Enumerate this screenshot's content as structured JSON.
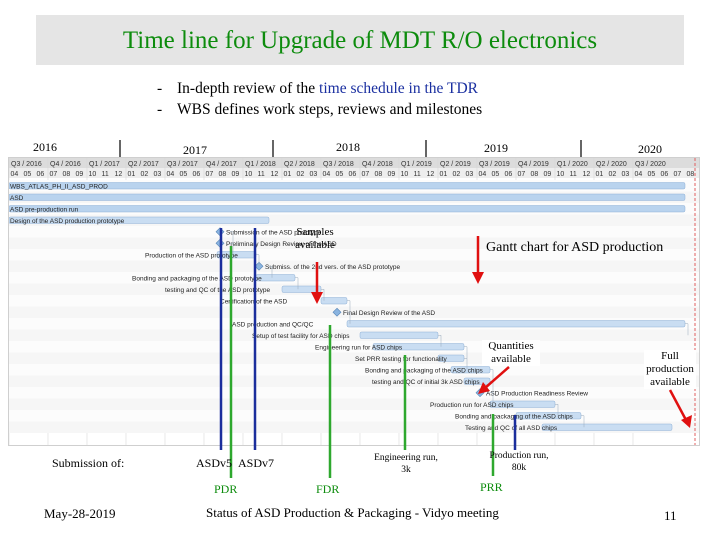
{
  "title": "Time line for Upgrade of MDT R/O electronics",
  "bullets": [
    {
      "dash": "-",
      "pre": "In-depth review of the ",
      "highlight": "time schedule in the TDR",
      "post": ""
    },
    {
      "dash": "-",
      "pre": "WBS defines work steps, reviews and milestones",
      "highlight": "",
      "post": ""
    }
  ],
  "years": [
    "2016",
    "2017",
    "2018",
    "2019",
    "2020"
  ],
  "gantt": {
    "quarters": [
      "Q3 / 2016",
      "Q4 / 2016",
      "Q1 / 2017",
      "Q2 / 2017",
      "Q3 / 2017",
      "Q4 / 2017",
      "Q1 / 2018",
      "Q2 / 2018",
      "Q3 / 2018",
      "Q4 / 2018",
      "Q1 / 2019",
      "Q2 / 2019",
      "Q3 / 2019",
      "Q4 / 2019",
      "Q1 / 2020",
      "Q2 / 2020",
      "Q3 / 2020"
    ],
    "months": [
      "04",
      "05",
      "06",
      "07",
      "08",
      "09",
      "10",
      "11",
      "12",
      "01",
      "02",
      "03",
      "04",
      "05",
      "06",
      "07",
      "08",
      "09",
      "10",
      "11",
      "12",
      "01",
      "02",
      "03",
      "04",
      "05",
      "06",
      "07",
      "08",
      "09",
      "10",
      "11",
      "12",
      "01",
      "02",
      "03",
      "04",
      "05",
      "06",
      "07",
      "08",
      "09",
      "10",
      "11",
      "12",
      "01",
      "02",
      "03",
      "04",
      "05",
      "06",
      "07",
      "08"
    ],
    "tasks": [
      "WBS_ATLAS_PH_II_ASD_PROD",
      "ASD",
      "ASD pre-production run",
      "Design of the ASD production prototype",
      "Submission of the ASD prototype",
      "Preliminary Design Review of the ASD",
      "Production of the ASD prototype",
      "Submiss. of the 2nd vers. of the ASD prototype",
      "Bonding and packaging of the ASD prototype",
      "testing and QC of the ASD prototype",
      "Certification of the ASD",
      "Final Design Review of the ASD",
      "ASD production and QC/QC",
      "Setup of test facility for ASD chips",
      "Engineering run for ASD chips",
      "Set PRR testing for functionality",
      "Bonding and packaging of the ASD chips",
      "testing and QC of initial 3k ASD chips",
      "ASD Production Readiness Review",
      "Production run for ASD chips",
      "Bonding and packaging of the ASD chips",
      "Testing and QC of all ASD chips"
    ]
  },
  "annotations": {
    "samples": "Samples available",
    "gantt_caption": "Gantt chart for ASD production",
    "quantities": "Quantities available",
    "full_production": "Full production available",
    "submission": "Submission of:",
    "asdv5": "ASDv5",
    "asdv7": "ASDv7",
    "pdr": "PDR",
    "fdr": "FDR",
    "engineering": "Engineering run, 3k",
    "production": "Production run, 80k",
    "prr": "PRR"
  },
  "footer": {
    "date": "May-28-2019",
    "center": "Status of ASD Production & Packaging - Vidyo meeting",
    "page": "11"
  },
  "colors": {
    "title": "#0d8c0d",
    "highlight": "#1a2fa0",
    "red_marker": "#e01010",
    "green_marker": "#2ea82e",
    "blue_marker": "#1b2e9c"
  }
}
